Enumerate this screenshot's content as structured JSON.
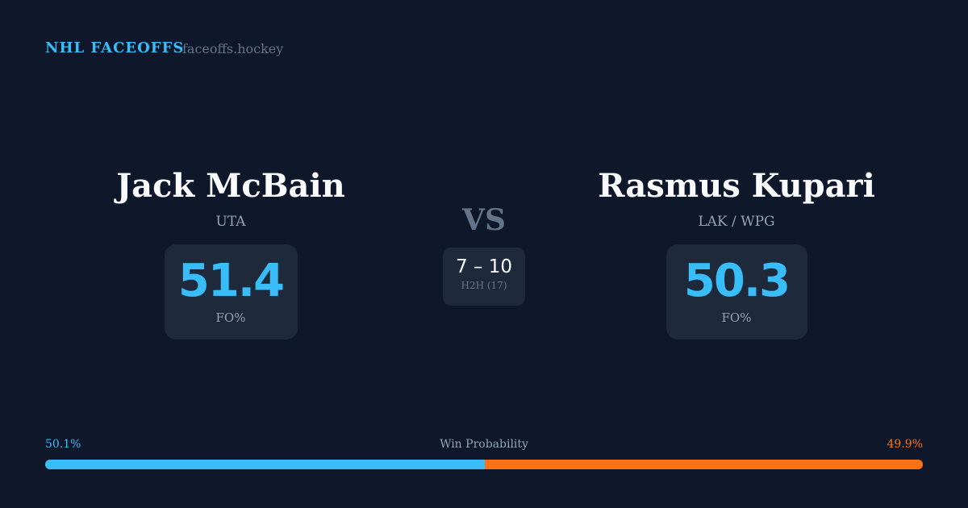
{
  "header": {
    "brand": "NHL FACEOFFS",
    "domain": "faceoffs.hockey"
  },
  "player1": {
    "name": "Jack McBain",
    "team": "UTA",
    "fo_pct": "51.4",
    "fo_label": "FO%"
  },
  "player2": {
    "name": "Rasmus Kupari",
    "team": "LAK / WPG",
    "fo_pct": "50.3",
    "fo_label": "FO%"
  },
  "versus": {
    "label": "VS",
    "h2h_score": "7 – 10",
    "h2h_label": "H2H (17)"
  },
  "win_probability": {
    "title": "Win Probability",
    "left_label": "50.1%",
    "right_label": "49.9%",
    "left_value": 50.1,
    "right_value": 49.9
  },
  "colors": {
    "background": "#0f172a",
    "accent_left": "#38bdf8",
    "accent_right": "#f97316",
    "card": "#1e293b"
  }
}
